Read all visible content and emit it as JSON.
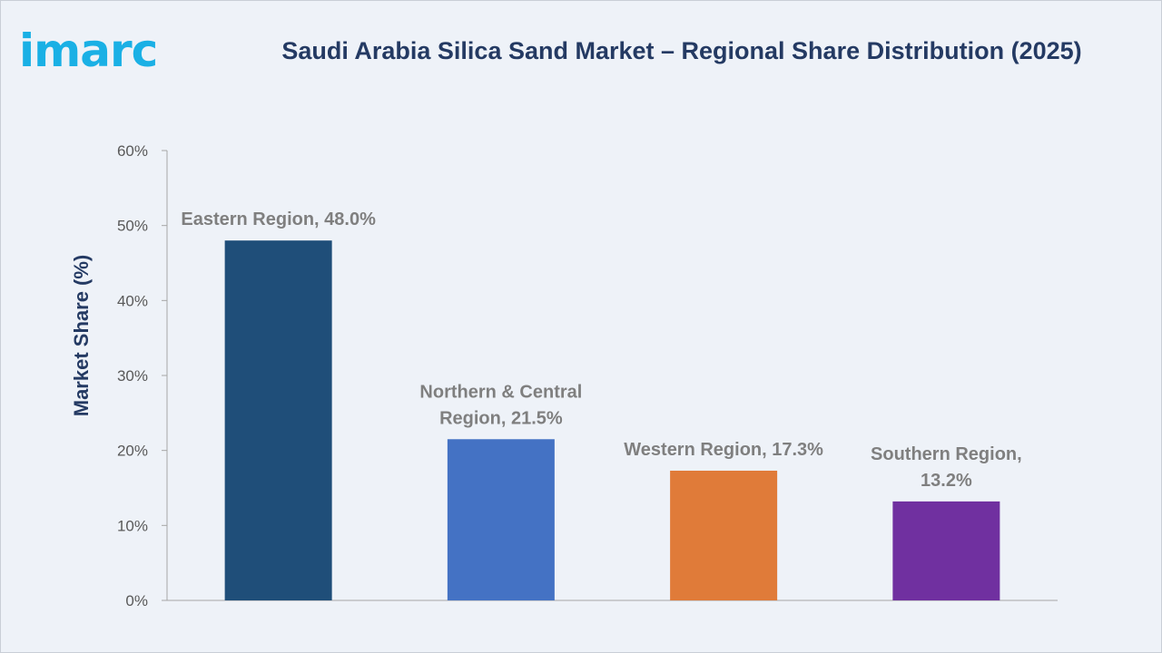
{
  "logo": {
    "text": "imarc",
    "color": "#1ab0e5"
  },
  "chart_data": {
    "type": "bar",
    "title": "Saudi Arabia Silica Sand Market – Regional Share Distribution (2025)",
    "xlabel": "",
    "ylabel": "Market Share (%)",
    "ylim": [
      0,
      60
    ],
    "yticks": [
      0,
      10,
      20,
      30,
      40,
      50,
      60
    ],
    "ytick_labels": [
      "0%",
      "10%",
      "20%",
      "30%",
      "40%",
      "50%",
      "60%"
    ],
    "grid": false,
    "legend": "none",
    "categories": [
      "Eastern Region",
      "Northern & Central Region",
      "Western Region",
      "Southern Region"
    ],
    "values": [
      48.0,
      21.5,
      17.3,
      13.2
    ],
    "colors": [
      "#1f4e79",
      "#4472c4",
      "#e07b39",
      "#7030a0"
    ],
    "data_labels": [
      [
        "Eastern Region, 48.0%"
      ],
      [
        "Northern & Central",
        "Region, 21.5%"
      ],
      [
        "Western Region, 17.3%"
      ],
      [
        "Southern Region,",
        "13.2%"
      ]
    ]
  }
}
